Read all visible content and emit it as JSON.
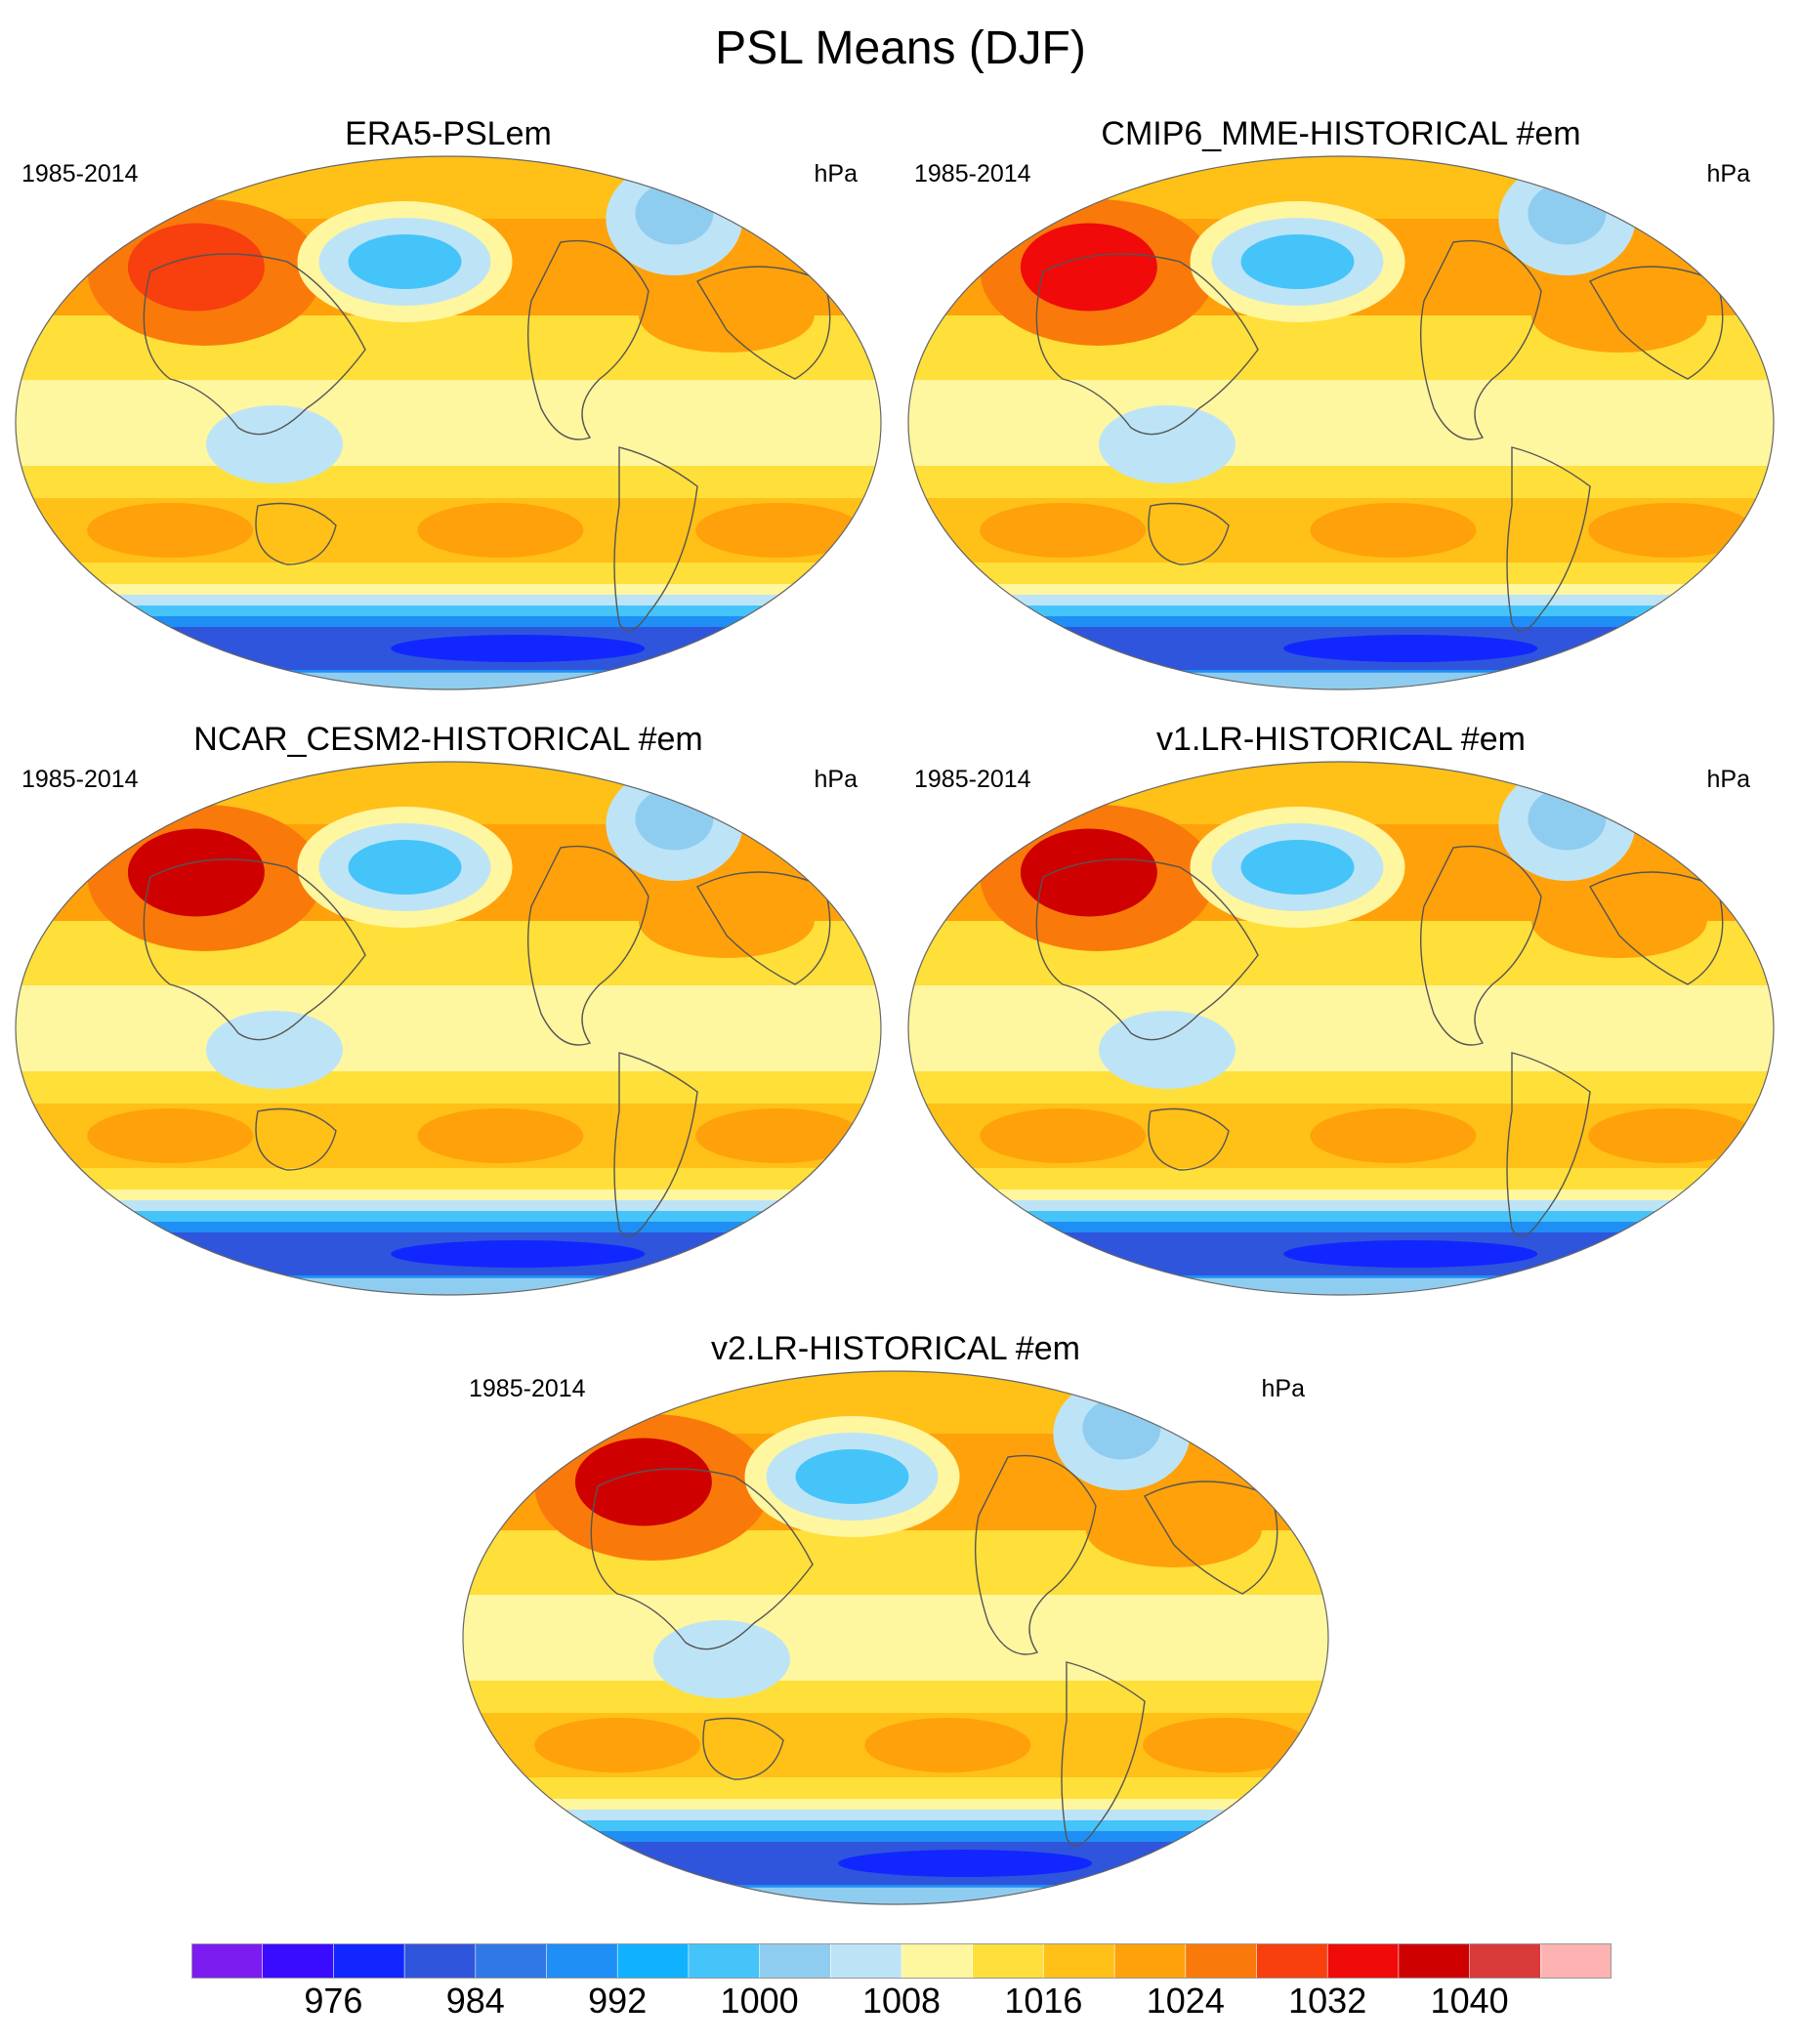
{
  "title": "PSL Means (DJF)",
  "panels": [
    {
      "title": "ERA5-PSLem",
      "period": "1985-2014",
      "units": "hPa"
    },
    {
      "title": "CMIP6_MME-HISTORICAL  #em",
      "period": "1985-2014",
      "units": "hPa"
    },
    {
      "title": "NCAR_CESM2-HISTORICAL  #em",
      "period": "1985-2014",
      "units": "hPa"
    },
    {
      "title": "v1.LR-HISTORICAL  #em",
      "period": "1985-2014",
      "units": "hPa"
    },
    {
      "title": "v2.LR-HISTORICAL  #em",
      "period": "1985-2014",
      "units": "hPa"
    }
  ],
  "colorbar": {
    "labels": [
      "976",
      "984",
      "992",
      "1000",
      "1008",
      "1016",
      "1024",
      "1032",
      "1040"
    ],
    "colors": [
      "#7c1cf0",
      "#3a0cff",
      "#1226ff",
      "#2f55dc",
      "#2f78e6",
      "#1f8ef5",
      "#10b2ff",
      "#45c4fa",
      "#8fcdf0",
      "#bde4f6",
      "#fff6a0",
      "#ffdf3a",
      "#ffc018",
      "#ffa10a",
      "#f97a0a",
      "#f83f0e",
      "#f00a0a",
      "#cf0000",
      "#d93a3a",
      "#feb3b3"
    ]
  }
}
